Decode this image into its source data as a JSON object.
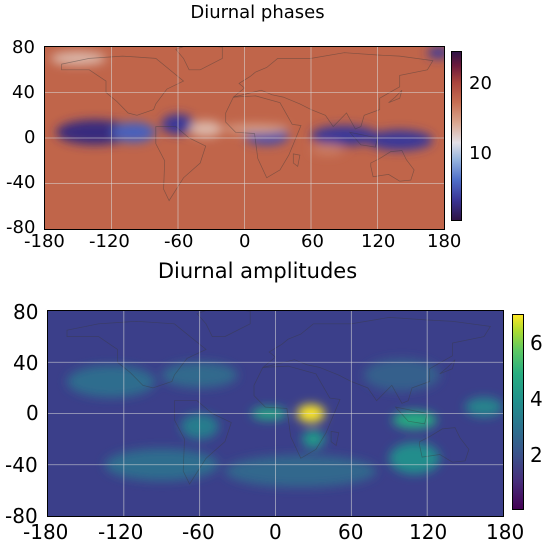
{
  "top_panel": {
    "title": "Diurnal phases",
    "x_ticks": [
      "-180",
      "-120",
      "-60",
      "0",
      "60",
      "120",
      "180"
    ],
    "y_ticks": [
      "80",
      "40",
      "0",
      "-40",
      "-80"
    ],
    "colorbar_ticks": [
      "20",
      "10"
    ],
    "colormap": "twilight_shifted",
    "colorbar_range": [
      0,
      24
    ]
  },
  "bottom_panel": {
    "title": "Diurnal amplitudes",
    "x_ticks": [
      "-180",
      "-120",
      "-60",
      "0",
      "60",
      "120",
      "180"
    ],
    "y_ticks": [
      "80",
      "40",
      "0",
      "-40",
      "-80"
    ],
    "colorbar_ticks": [
      "6",
      "4",
      "2"
    ],
    "colormap": "viridis",
    "colorbar_range": [
      0,
      7
    ]
  },
  "colors": {
    "land_outline": "#3a3a3a",
    "grid": "#d8d8d8",
    "phase_background": "#c0654a",
    "amplitude_background": "#3b3f8a"
  },
  "chart_data": [
    {
      "type": "heatmap",
      "title": "Diurnal phases",
      "x_range": [
        -180,
        180
      ],
      "y_range": [
        -80,
        80
      ],
      "colorbar_range": [
        0,
        24
      ],
      "colorbar_ticks": [
        10,
        20
      ],
      "colormap": "twilight_shifted",
      "grid": true,
      "features": [
        {
          "lon": -135,
          "lat": 5,
          "lon_span": 70,
          "lat_span": 22,
          "value": 2
        },
        {
          "lon": -100,
          "lat": 5,
          "lon_span": 40,
          "lat_span": 18,
          "value": 5
        },
        {
          "lon": -60,
          "lat": 12,
          "lon_span": 30,
          "lat_span": 18,
          "value": 3
        },
        {
          "lon": -35,
          "lat": 8,
          "lon_span": 30,
          "lat_span": 14,
          "value": 13
        },
        {
          "lon": 20,
          "lat": 2,
          "lon_span": 40,
          "lat_span": 16,
          "value": 4
        },
        {
          "lon": 90,
          "lat": 2,
          "lon_span": 60,
          "lat_span": 18,
          "value": 3
        },
        {
          "lon": 140,
          "lat": -2,
          "lon_span": 60,
          "lat_span": 18,
          "value": 3
        },
        {
          "lon": 75,
          "lat": -10,
          "lon_span": 30,
          "lat_span": 10,
          "value": 16
        },
        {
          "lon": 10,
          "lat": 8,
          "lon_span": 60,
          "lat_span": 8,
          "value": 14
        },
        {
          "lon": -150,
          "lat": 70,
          "lon_span": 50,
          "lat_span": 12,
          "value": 13
        },
        {
          "lon": 175,
          "lat": 75,
          "lon_span": 20,
          "lat_span": 10,
          "value": 3
        }
      ]
    },
    {
      "type": "heatmap",
      "title": "Diurnal amplitudes",
      "x_range": [
        -180,
        180
      ],
      "y_range": [
        -80,
        80
      ],
      "colorbar_range": [
        0,
        7
      ],
      "colorbar_ticks": [
        2,
        4,
        6
      ],
      "colormap": "viridis",
      "grid": true,
      "features": [
        {
          "lon": 28,
          "lat": 0,
          "lon_span": 22,
          "lat_span": 14,
          "value": 7
        },
        {
          "lon": 30,
          "lat": -20,
          "lon_span": 18,
          "lat_span": 14,
          "value": 4.2
        },
        {
          "lon": -5,
          "lat": 0,
          "lon_span": 28,
          "lat_span": 10,
          "value": 4.6
        },
        {
          "lon": 110,
          "lat": -5,
          "lon_span": 35,
          "lat_span": 14,
          "value": 4.8
        },
        {
          "lon": 110,
          "lat": -35,
          "lon_span": 40,
          "lat_span": 25,
          "value": 3.8
        },
        {
          "lon": 165,
          "lat": 5,
          "lon_span": 30,
          "lat_span": 15,
          "value": 3.5
        },
        {
          "lon": -60,
          "lat": -10,
          "lon_span": 30,
          "lat_span": 20,
          "value": 3.3
        },
        {
          "lon": -130,
          "lat": 25,
          "lon_span": 70,
          "lat_span": 25,
          "value": 2.8
        },
        {
          "lon": -60,
          "lat": 30,
          "lon_span": 60,
          "lat_span": 20,
          "value": 2.7
        },
        {
          "lon": -90,
          "lat": -40,
          "lon_span": 90,
          "lat_span": 25,
          "value": 2.8
        },
        {
          "lon": 20,
          "lat": -45,
          "lon_span": 120,
          "lat_span": 25,
          "value": 2.6
        },
        {
          "lon": 100,
          "lat": 30,
          "lon_span": 60,
          "lat_span": 25,
          "value": 2.4
        }
      ]
    }
  ]
}
